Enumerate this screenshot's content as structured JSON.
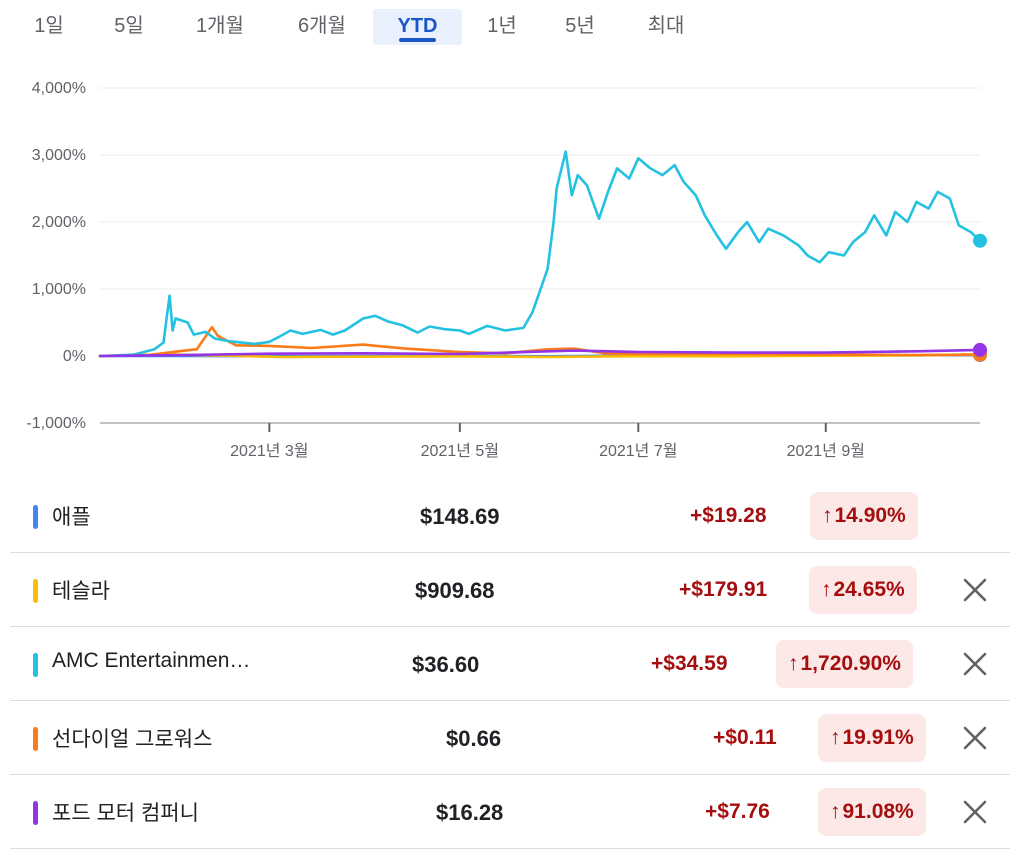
{
  "tabs": [
    {
      "label": "1일",
      "active": false
    },
    {
      "label": "5일",
      "active": false
    },
    {
      "label": "1개월",
      "active": false
    },
    {
      "label": "6개월",
      "active": false
    },
    {
      "label": "YTD",
      "active": true
    },
    {
      "label": "1년",
      "active": false
    },
    {
      "label": "5년",
      "active": false
    },
    {
      "label": "최대",
      "active": false
    }
  ],
  "chart_data": {
    "type": "line",
    "ylim": [
      -1000,
      4000
    ],
    "yticks": [
      {
        "value": 4000,
        "label": "4,000%"
      },
      {
        "value": 3000,
        "label": "3,000%"
      },
      {
        "value": 2000,
        "label": "2,000%"
      },
      {
        "value": 1000,
        "label": "1,000%"
      },
      {
        "value": 0,
        "label": "0%"
      },
      {
        "value": -1000,
        "label": "-1,000%"
      }
    ],
    "xlim": [
      "2021-01-04",
      "2021-10-22"
    ],
    "xticks": [
      {
        "date": "2021-03-01",
        "label": "2021년 3월"
      },
      {
        "date": "2021-05-03",
        "label": "2021년 5월"
      },
      {
        "date": "2021-07-01",
        "label": "2021년 7월"
      },
      {
        "date": "2021-09-01",
        "label": "2021년 9월"
      }
    ],
    "grid": true,
    "series": [
      {
        "name": "애플",
        "color": "#4285f4",
        "points": [
          [
            "2021-01-04",
            0
          ],
          [
            "2021-02-01",
            2
          ],
          [
            "2021-03-01",
            -5
          ],
          [
            "2021-04-01",
            -2
          ],
          [
            "2021-05-03",
            3
          ],
          [
            "2021-06-01",
            -4
          ],
          [
            "2021-07-01",
            7
          ],
          [
            "2021-08-02",
            12
          ],
          [
            "2021-09-01",
            15
          ],
          [
            "2021-10-01",
            10
          ],
          [
            "2021-10-22",
            15
          ]
        ]
      },
      {
        "name": "테슬라",
        "color": "#fbbc04",
        "points": [
          [
            "2021-01-04",
            0
          ],
          [
            "2021-01-26",
            25
          ],
          [
            "2021-03-05",
            -15
          ],
          [
            "2021-04-01",
            -10
          ],
          [
            "2021-05-03",
            -5
          ],
          [
            "2021-06-01",
            -15
          ],
          [
            "2021-07-01",
            -3
          ],
          [
            "2021-08-02",
            -5
          ],
          [
            "2021-09-01",
            5
          ],
          [
            "2021-10-01",
            10
          ],
          [
            "2021-10-22",
            25
          ]
        ]
      },
      {
        "name": "AMC Entertainmen…",
        "color": "#24c1e0",
        "points": [
          [
            "2021-01-04",
            0
          ],
          [
            "2021-01-15",
            20
          ],
          [
            "2021-01-22",
            100
          ],
          [
            "2021-01-25",
            200
          ],
          [
            "2021-01-26",
            550
          ],
          [
            "2021-01-27",
            900
          ],
          [
            "2021-01-28",
            380
          ],
          [
            "2021-01-29",
            560
          ],
          [
            "2021-02-02",
            500
          ],
          [
            "2021-02-04",
            320
          ],
          [
            "2021-02-08",
            360
          ],
          [
            "2021-02-11",
            260
          ],
          [
            "2021-02-16",
            220
          ],
          [
            "2021-02-24",
            180
          ],
          [
            "2021-03-01",
            210
          ],
          [
            "2021-03-04",
            280
          ],
          [
            "2021-03-08",
            380
          ],
          [
            "2021-03-12",
            330
          ],
          [
            "2021-03-18",
            390
          ],
          [
            "2021-03-22",
            320
          ],
          [
            "2021-03-26",
            380
          ],
          [
            "2021-04-01",
            560
          ],
          [
            "2021-04-05",
            600
          ],
          [
            "2021-04-09",
            520
          ],
          [
            "2021-04-14",
            460
          ],
          [
            "2021-04-19",
            350
          ],
          [
            "2021-04-23",
            440
          ],
          [
            "2021-04-28",
            400
          ],
          [
            "2021-05-03",
            380
          ],
          [
            "2021-05-06",
            330
          ],
          [
            "2021-05-12",
            450
          ],
          [
            "2021-05-18",
            380
          ],
          [
            "2021-05-24",
            420
          ],
          [
            "2021-05-27",
            650
          ],
          [
            "2021-06-01",
            1300
          ],
          [
            "2021-06-03",
            2000
          ],
          [
            "2021-06-04",
            2500
          ],
          [
            "2021-06-07",
            3050
          ],
          [
            "2021-06-09",
            2400
          ],
          [
            "2021-06-11",
            2700
          ],
          [
            "2021-06-14",
            2550
          ],
          [
            "2021-06-16",
            2300
          ],
          [
            "2021-06-18",
            2050
          ],
          [
            "2021-06-21",
            2450
          ],
          [
            "2021-06-24",
            2800
          ],
          [
            "2021-06-28",
            2650
          ],
          [
            "2021-07-01",
            2950
          ],
          [
            "2021-07-05",
            2800
          ],
          [
            "2021-07-09",
            2700
          ],
          [
            "2021-07-13",
            2850
          ],
          [
            "2021-07-16",
            2600
          ],
          [
            "2021-07-20",
            2400
          ],
          [
            "2021-07-23",
            2100
          ],
          [
            "2021-07-27",
            1800
          ],
          [
            "2021-07-30",
            1600
          ],
          [
            "2021-08-03",
            1850
          ],
          [
            "2021-08-06",
            2000
          ],
          [
            "2021-08-10",
            1700
          ],
          [
            "2021-08-13",
            1900
          ],
          [
            "2021-08-18",
            1800
          ],
          [
            "2021-08-23",
            1650
          ],
          [
            "2021-08-26",
            1500
          ],
          [
            "2021-08-30",
            1400
          ],
          [
            "2021-09-02",
            1550
          ],
          [
            "2021-09-07",
            1500
          ],
          [
            "2021-09-10",
            1700
          ],
          [
            "2021-09-14",
            1850
          ],
          [
            "2021-09-17",
            2100
          ],
          [
            "2021-09-21",
            1800
          ],
          [
            "2021-09-24",
            2150
          ],
          [
            "2021-09-28",
            2000
          ],
          [
            "2021-10-01",
            2300
          ],
          [
            "2021-10-05",
            2200
          ],
          [
            "2021-10-08",
            2450
          ],
          [
            "2021-10-12",
            2350
          ],
          [
            "2021-10-15",
            1950
          ],
          [
            "2021-10-19",
            1850
          ],
          [
            "2021-10-22",
            1720
          ]
        ]
      },
      {
        "name": "선다이얼 그로워스",
        "color": "#fa7b17",
        "points": [
          [
            "2021-01-04",
            0
          ],
          [
            "2021-01-20",
            15
          ],
          [
            "2021-02-01",
            80
          ],
          [
            "2021-02-05",
            100
          ],
          [
            "2021-02-10",
            430
          ],
          [
            "2021-02-12",
            300
          ],
          [
            "2021-02-18",
            160
          ],
          [
            "2021-03-01",
            150
          ],
          [
            "2021-03-15",
            120
          ],
          [
            "2021-04-01",
            170
          ],
          [
            "2021-04-15",
            110
          ],
          [
            "2021-05-03",
            60
          ],
          [
            "2021-05-18",
            40
          ],
          [
            "2021-06-01",
            100
          ],
          [
            "2021-06-10",
            110
          ],
          [
            "2021-06-20",
            40
          ],
          [
            "2021-07-01",
            30
          ],
          [
            "2021-08-02",
            30
          ],
          [
            "2021-09-01",
            20
          ],
          [
            "2021-10-01",
            15
          ],
          [
            "2021-10-22",
            20
          ]
        ]
      },
      {
        "name": "포드 모터 컴퍼니",
        "color": "#9334e6",
        "points": [
          [
            "2021-01-04",
            0
          ],
          [
            "2021-02-01",
            15
          ],
          [
            "2021-03-01",
            35
          ],
          [
            "2021-04-01",
            40
          ],
          [
            "2021-05-03",
            30
          ],
          [
            "2021-06-01",
            70
          ],
          [
            "2021-06-10",
            80
          ],
          [
            "2021-07-01",
            60
          ],
          [
            "2021-08-02",
            50
          ],
          [
            "2021-09-01",
            50
          ],
          [
            "2021-10-01",
            70
          ],
          [
            "2021-10-22",
            91
          ]
        ]
      }
    ]
  },
  "rows": [
    {
      "name": "애플",
      "color": "#4285f4",
      "price": "$148.69",
      "change": "+$19.28",
      "percent": "14.90%",
      "removable": false
    },
    {
      "name": "테슬라",
      "color": "#fbbc04",
      "price": "$909.68",
      "change": "+$179.91",
      "percent": "24.65%",
      "removable": true
    },
    {
      "name": "AMC Entertainmen…",
      "color": "#24c1e0",
      "price": "$36.60",
      "change": "+$34.59",
      "percent": "1,720.90%",
      "removable": true
    },
    {
      "name": "선다이얼 그로워스",
      "color": "#fa7b17",
      "price": "$0.66",
      "change": "+$0.11",
      "percent": "19.91%",
      "removable": true
    },
    {
      "name": "포드 모터 컴퍼니",
      "color": "#9334e6",
      "price": "$16.28",
      "change": "+$7.76",
      "percent": "91.08%",
      "removable": true
    }
  ],
  "icons": {
    "up": "arrow-up-icon",
    "close": "close-icon"
  },
  "colors": {
    "positive": "#a50e0e",
    "badge_bg": "#fce8e6",
    "accent": "#1a56c7"
  }
}
